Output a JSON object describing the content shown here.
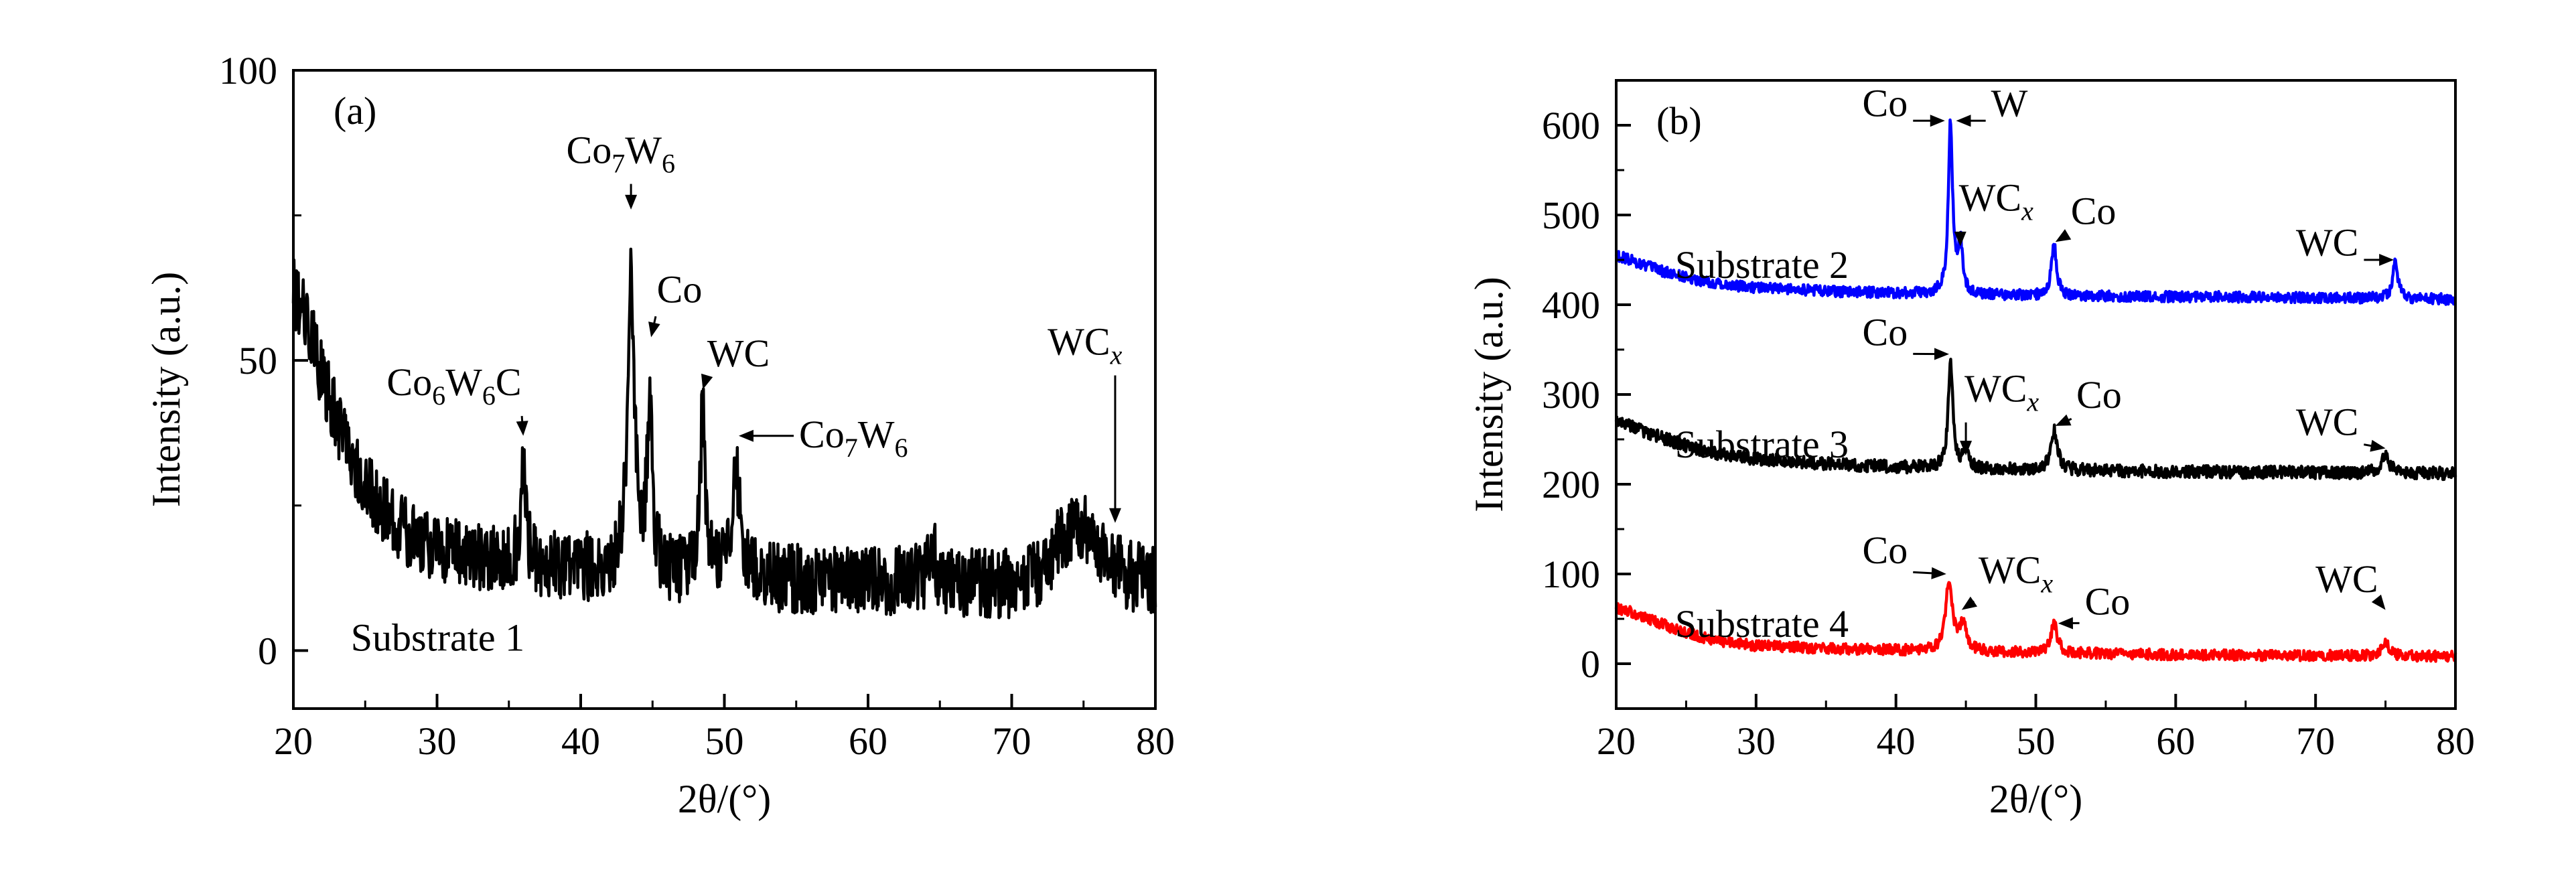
{
  "figure": {
    "colors": {
      "axis": "#000000",
      "black": "#000000",
      "blue": "#0000ff",
      "red": "#ff0000"
    }
  },
  "chart_data": [
    {
      "type": "line",
      "panel_label": "(a)",
      "xlabel": "2θ/(°)",
      "ylabel": "Intensity (a.u.)",
      "xlim": [
        20,
        80
      ],
      "ylim": [
        -10,
        100
      ],
      "xticks": [
        "20",
        "30",
        "40",
        "50",
        "60",
        "70",
        "80"
      ],
      "yticks": [
        "0",
        "50",
        "100"
      ],
      "grid": false,
      "series": [
        {
          "name": "Substrate 1",
          "color": "#000000",
          "baseline": [
            [
              20,
              62
            ],
            [
              21,
              57
            ],
            [
              22,
              47
            ],
            [
              23,
              40
            ],
            [
              24,
              34
            ],
            [
              25,
              29
            ],
            [
              26,
              25
            ],
            [
              27,
              22
            ],
            [
              28,
              20
            ],
            [
              30,
              18
            ],
            [
              33,
              16
            ],
            [
              36,
              15
            ],
            [
              40,
              14
            ],
            [
              44,
              13.5
            ],
            [
              48,
              13
            ],
            [
              52,
              12.5
            ],
            [
              58,
              12
            ],
            [
              64,
              12
            ],
            [
              70,
              11.5
            ],
            [
              72,
              13
            ],
            [
              73.5,
              20
            ],
            [
              75,
              21
            ],
            [
              76,
              18
            ],
            [
              77,
              15
            ],
            [
              78,
              13
            ],
            [
              80,
              12
            ]
          ],
          "noise": 6,
          "peaks": [
            {
              "x": 36.0,
              "height": 16,
              "width": 0.22
            },
            {
              "x": 43.5,
              "height": 52,
              "width": 0.28
            },
            {
              "x": 44.8,
              "height": 28,
              "width": 0.22
            },
            {
              "x": 48.5,
              "height": 30,
              "width": 0.2
            },
            {
              "x": 50.8,
              "height": 20,
              "width": 0.3
            },
            {
              "x": 64.5,
              "height": 5,
              "width": 0.3
            }
          ]
        }
      ],
      "annotations": [
        {
          "text": "Co",
          "sub": "6",
          "text2": "W",
          "sub2": "6",
          "text3": "C",
          "x": 26.5,
          "y": 44,
          "arrow_to": [
            36.0,
            37
          ]
        },
        {
          "text": "Co",
          "sub": "7",
          "text2": "W",
          "sub2": "6",
          "x": 39.0,
          "y": 84,
          "arrow_to": [
            43.5,
            76
          ]
        },
        {
          "text": "Co",
          "x": 45.3,
          "y": 60,
          "arrow_to": [
            44.9,
            54
          ]
        },
        {
          "text": "WC",
          "x": 48.8,
          "y": 49,
          "arrow_to": [
            48.5,
            45
          ]
        },
        {
          "text": "Co",
          "sub": "7",
          "text2": "W",
          "sub2": "6",
          "x": 55.2,
          "y": 35,
          "arrow_to": [
            51.0,
            37
          ]
        },
        {
          "text": "WC",
          "sub_italic": "x",
          "x": 72.5,
          "y": 51,
          "arrow_to": [
            77.2,
            22
          ]
        }
      ],
      "series_label": {
        "text": "Substrate 1",
        "x": 24.0,
        "y": 0
      }
    },
    {
      "type": "line",
      "panel_label": "(b)",
      "xlabel": "2θ/(°)",
      "ylabel": "Intensity (a.u.)",
      "xlim": [
        20,
        80
      ],
      "ylim": [
        -50,
        650
      ],
      "xticks": [
        "20",
        "30",
        "40",
        "50",
        "60",
        "70",
        "80"
      ],
      "yticks": [
        "0",
        "100",
        "200",
        "300",
        "400",
        "500",
        "600"
      ],
      "grid": false,
      "series": [
        {
          "name": "Substrate 2",
          "color": "#0000ff",
          "baseline": [
            [
              20,
              455
            ],
            [
              21,
              450
            ],
            [
              22,
              444
            ],
            [
              24,
              434
            ],
            [
              26,
              427
            ],
            [
              28,
              422
            ],
            [
              30,
              419
            ],
            [
              35,
              415
            ],
            [
              40,
              413
            ],
            [
              50,
              410
            ],
            [
              60,
              409
            ],
            [
              70,
              408
            ],
            [
              80,
              406
            ]
          ],
          "noise": 6,
          "peaks": [
            {
              "x": 43.9,
              "height": 190,
              "width": 0.18
            },
            {
              "x": 44.6,
              "height": 55,
              "width": 0.2
            },
            {
              "x": 51.3,
              "height": 58,
              "width": 0.22
            },
            {
              "x": 75.7,
              "height": 40,
              "width": 0.22
            }
          ]
        },
        {
          "name": "Substrate 3",
          "color": "#000000",
          "baseline": [
            [
              20,
              270
            ],
            [
              21,
              266
            ],
            [
              22,
              259
            ],
            [
              24,
              248
            ],
            [
              26,
              238
            ],
            [
              28,
              232
            ],
            [
              30,
              228
            ],
            [
              35,
              223
            ],
            [
              40,
              219
            ],
            [
              50,
              216
            ],
            [
              60,
              214
            ],
            [
              70,
              213
            ],
            [
              80,
              212
            ]
          ],
          "noise": 7,
          "peaks": [
            {
              "x": 43.9,
              "height": 118,
              "width": 0.2
            },
            {
              "x": 45.0,
              "height": 18,
              "width": 0.25
            },
            {
              "x": 51.3,
              "height": 45,
              "width": 0.28
            },
            {
              "x": 75.0,
              "height": 22,
              "width": 0.3
            }
          ]
        },
        {
          "name": "Substrate 4",
          "color": "#ff0000",
          "baseline": [
            [
              20,
              62
            ],
            [
              21,
              58
            ],
            [
              22,
              52
            ],
            [
              24,
              40
            ],
            [
              26,
              30
            ],
            [
              28,
              24
            ],
            [
              30,
              20
            ],
            [
              35,
              17
            ],
            [
              40,
              15
            ],
            [
              50,
              12
            ],
            [
              60,
              10
            ],
            [
              70,
              9
            ],
            [
              80,
              8
            ]
          ],
          "noise": 6,
          "peaks": [
            {
              "x": 43.8,
              "height": 80,
              "width": 0.28
            },
            {
              "x": 44.8,
              "height": 30,
              "width": 0.3
            },
            {
              "x": 51.3,
              "height": 33,
              "width": 0.28
            },
            {
              "x": 75.0,
              "height": 16,
              "width": 0.3
            }
          ]
        }
      ],
      "annotations": [
        {
          "text": "Co",
          "x": 37.6,
          "y": 610,
          "arrow_to": [
            43.5,
            605
          ]
        },
        {
          "text": "W",
          "x": 46.8,
          "y": 610,
          "arrow_to": [
            44.3,
            605
          ]
        },
        {
          "text": "WC",
          "sub_italic": "x",
          "x": 44.5,
          "y": 505,
          "arrow_to": [
            44.6,
            465
          ]
        },
        {
          "text": "Co",
          "x": 52.5,
          "y": 490,
          "arrow_to": [
            51.4,
            470
          ]
        },
        {
          "text": "WC",
          "x": 68.6,
          "y": 455,
          "arrow_to": [
            75.6,
            450
          ]
        },
        {
          "text": "Co",
          "x": 37.6,
          "y": 355,
          "arrow_to": [
            43.8,
            345
          ]
        },
        {
          "text": "WC",
          "sub_italic": "x",
          "x": 44.9,
          "y": 292,
          "arrow_to": [
            45.0,
            232
          ]
        },
        {
          "text": "Co",
          "x": 52.9,
          "y": 285,
          "arrow_to": [
            51.4,
            265
          ]
        },
        {
          "text": "WC",
          "x": 68.6,
          "y": 255,
          "arrow_to": [
            75.0,
            240
          ]
        },
        {
          "text": "Co",
          "x": 37.6,
          "y": 112,
          "arrow_to": [
            43.6,
            100
          ]
        },
        {
          "text": "WC",
          "sub_italic": "x",
          "x": 45.9,
          "y": 90,
          "arrow_to": [
            44.7,
            60
          ]
        },
        {
          "text": "Co",
          "x": 53.5,
          "y": 55,
          "arrow_to": [
            51.6,
            45
          ]
        },
        {
          "text": "WC",
          "x": 70.0,
          "y": 80,
          "arrow_to": [
            75.0,
            60
          ]
        }
      ],
      "series_labels": [
        {
          "text": "Substrate 2",
          "x": 24.2,
          "y": 430
        },
        {
          "text": "Substrate 3",
          "x": 24.2,
          "y": 230
        },
        {
          "text": "Substrate 4",
          "x": 24.2,
          "y": 30
        }
      ]
    }
  ]
}
